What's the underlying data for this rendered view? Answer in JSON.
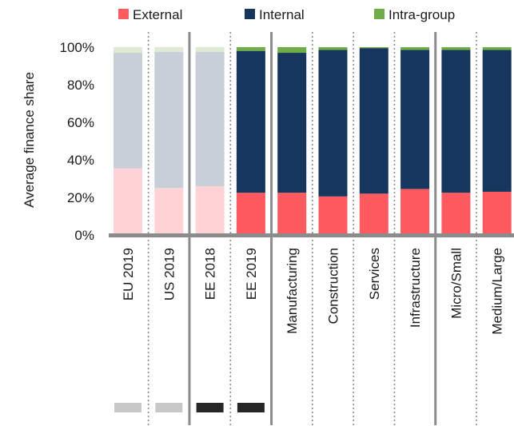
{
  "chart_data": {
    "type": "bar",
    "stacked": true,
    "ylabel": "Average finance  share",
    "ylim": [
      0,
      100
    ],
    "yticks": [
      "0%",
      "20%",
      "40%",
      "60%",
      "80%",
      "100%"
    ],
    "categories": [
      "EU 2019",
      "US 2019",
      "EE 2018",
      "EE 2019",
      "Manufacturing",
      "Construction",
      "Services",
      "Infrastructure",
      "Micro/Small",
      "Medium/Large"
    ],
    "faded": [
      true,
      true,
      true,
      false,
      false,
      false,
      false,
      false,
      false,
      false
    ],
    "series": [
      {
        "name": "External",
        "color": "#FF5A5F",
        "faded_color": "#FFD3D6",
        "values": [
          35.5,
          25,
          26,
          22.5,
          22.5,
          20.5,
          22,
          24.5,
          22.5,
          23
        ]
      },
      {
        "name": "Internal",
        "color": "#17365D",
        "faded_color": "#C7CFD9",
        "values": [
          61.5,
          72.5,
          71.5,
          75.5,
          74.5,
          78,
          77.5,
          74,
          76,
          75.5
        ]
      },
      {
        "name": "Intra-group",
        "color": "#70AD47",
        "faded_color": "#DCEBD2",
        "values": [
          3,
          2.5,
          2.5,
          2,
          3,
          1.5,
          0.5,
          1.5,
          1.5,
          1.5
        ]
      }
    ],
    "markers": [
      {
        "category": "EU 2019",
        "color": "#C8C8C8"
      },
      {
        "category": "US 2019",
        "color": "#C8C8C8"
      },
      {
        "category": "EE 2018",
        "color": "#262626"
      },
      {
        "category": "EE 2019",
        "color": "#262626"
      }
    ],
    "separators": {
      "solid_after": [
        "US 2019",
        "EE 2019",
        "Infrastructure"
      ]
    },
    "legend_position": "top",
    "grid": false
  }
}
